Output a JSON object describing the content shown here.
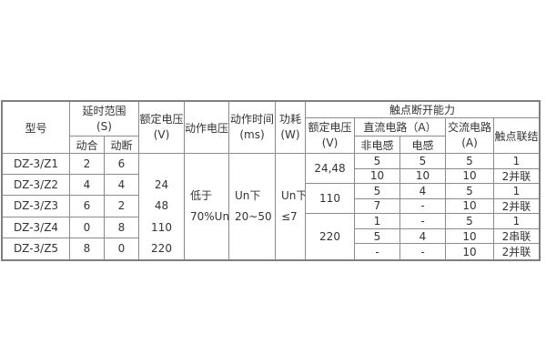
{
  "colors": {
    "border": "#8c8c8c",
    "outer_border": "#7f7f7f",
    "text": "#333333",
    "background": "#ffffff"
  },
  "table": {
    "header": {
      "model": "型号",
      "delay_range": "延时范围",
      "delay_range_unit": "(S)",
      "delay_no": "动合",
      "delay_nc": "动断",
      "rated_voltage": "额定电压",
      "rated_voltage_unit": "(V)",
      "operate_voltage": "动作电压",
      "operate_time": "动作时间",
      "operate_time_unit": "(ms)",
      "power": "功耗",
      "power_unit": "(W)",
      "breaking_capacity": "触点断开能力",
      "breaking_voltage": "额定电压",
      "breaking_voltage_unit": "(V)",
      "dc_circuit": "直流电路（A）",
      "dc_non_inductive": "非电感",
      "dc_inductive": "电感",
      "ac_circuit": "交流电路",
      "ac_circuit_unit": "(A)",
      "contact_connection": "触点联结"
    },
    "models": [
      {
        "model": "DZ-3/Z1",
        "delay_no": "2",
        "delay_nc": "6"
      },
      {
        "model": "DZ-3/Z2",
        "delay_no": "4",
        "delay_nc": "4"
      },
      {
        "model": "DZ-3/Z3",
        "delay_no": "6",
        "delay_nc": "2"
      },
      {
        "model": "DZ-3/Z4",
        "delay_no": "0",
        "delay_nc": "8"
      },
      {
        "model": "DZ-3/Z5",
        "delay_no": "8",
        "delay_nc": "0"
      }
    ],
    "shared": {
      "rated_voltages": [
        "24",
        "48",
        "110",
        "220"
      ],
      "operate_voltage_lines": [
        "低于",
        "70%Un"
      ],
      "operate_time_lines": [
        "Un下",
        "20~50"
      ],
      "power_lines": [
        "Un下",
        "≤7"
      ]
    },
    "breaking": {
      "voltage_groups": [
        {
          "voltage": "24,48"
        },
        {
          "voltage": "110"
        },
        {
          "voltage": "220"
        }
      ],
      "rows": [
        [
          "5",
          "5",
          "5",
          "1"
        ],
        [
          "10",
          "10",
          "10",
          "2并联"
        ],
        [
          "5",
          "4",
          "5",
          "1"
        ],
        [
          "7",
          "-",
          "10",
          "2并联"
        ],
        [
          "1",
          "-",
          "5",
          "1"
        ],
        [
          "5",
          "4",
          "10",
          "2串联"
        ],
        [
          "-",
          "-",
          "10",
          "2并联"
        ]
      ]
    }
  }
}
